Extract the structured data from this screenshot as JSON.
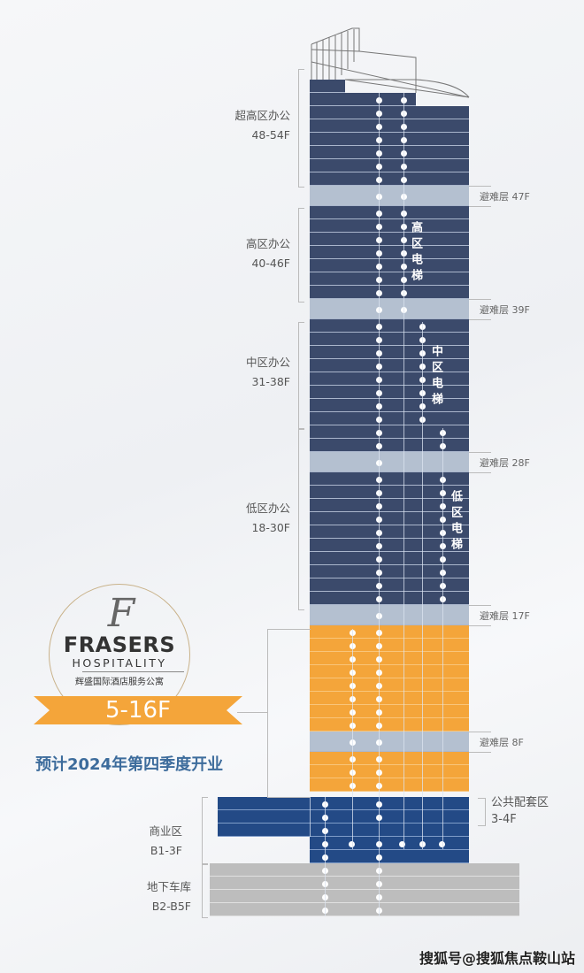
{
  "zones": {
    "super_high": {
      "name": "超高区办公",
      "floors": "48-54F"
    },
    "high": {
      "name": "高区办公",
      "floors": "40-46F"
    },
    "mid": {
      "name": "中区办公",
      "floors": "31-38F"
    },
    "low": {
      "name": "低区办公",
      "floors": "18-30F"
    },
    "commercial": {
      "name": "商业区",
      "floors": "B1-3F"
    },
    "parking": {
      "name": "地下车库",
      "floors": "B2-B5F"
    },
    "public": {
      "name": "公共配套区",
      "floors": "3-4F"
    }
  },
  "refuge_floors": [
    "避难层 47F",
    "避难层 39F",
    "避难层 28F",
    "避难层 17F",
    "避难层 8F"
  ],
  "elevators": {
    "high": "高区电梯",
    "mid": "中区电梯",
    "low": "低区电梯"
  },
  "hotel": {
    "logo_letter": "F",
    "brand": "FRASERS",
    "sub": "HOSPITALITY",
    "cn_name": "辉盛国际酒店服务公寓",
    "floors": "5-16F",
    "opening": "预计2024年第四季度开业"
  },
  "watermark": "搜狐号@搜狐焦点鞍山站",
  "colors": {
    "office": "#3b4a6b",
    "refuge": "#b4c0d0",
    "hotel": "#f4a53a",
    "commercial": "#234a86",
    "parking": "#bdbdbd",
    "opening_text": "#3d6c9c"
  }
}
